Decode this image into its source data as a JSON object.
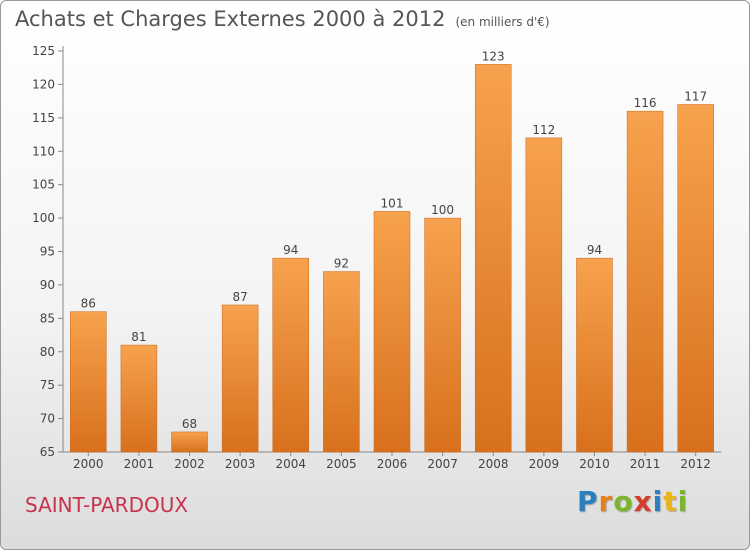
{
  "chart_data": {
    "type": "bar",
    "title": "Achats et Charges Externes 2000 à 2012",
    "subtitle": "(en milliers d'€)",
    "categories": [
      "2000",
      "2001",
      "2002",
      "2003",
      "2004",
      "2005",
      "2006",
      "2007",
      "2008",
      "2009",
      "2010",
      "2011",
      "2012"
    ],
    "values": [
      86,
      81,
      68,
      87,
      94,
      92,
      101,
      100,
      123,
      112,
      94,
      116,
      117
    ],
    "ylim": [
      65,
      125
    ],
    "yticks": [
      65,
      70,
      75,
      80,
      85,
      90,
      95,
      100,
      105,
      110,
      115,
      120,
      125
    ],
    "grid": false,
    "bar_color_top": "#f7a24e",
    "bar_color_bottom": "#d8701c"
  },
  "footer": {
    "town": "SAINT-PARDOUX",
    "logo_letters": [
      "P",
      "r",
      "o",
      "x",
      "i",
      "t",
      "i"
    ],
    "logo_colors": [
      "#2a7fc0",
      "#e8801a",
      "#7ab52c",
      "#d43c2c",
      "#2a7fc0",
      "#e8b41a",
      "#7ab52c"
    ]
  }
}
